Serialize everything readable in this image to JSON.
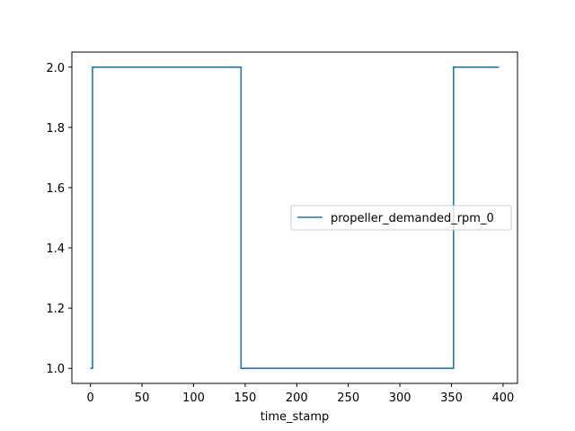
{
  "chart_data": {
    "type": "line",
    "title": "",
    "xlabel": "time_stamp",
    "ylabel": "",
    "xlim": [
      -18,
      414
    ],
    "ylim": [
      0.95,
      2.05
    ],
    "xticks": [
      0,
      50,
      100,
      150,
      200,
      250,
      300,
      350,
      400
    ],
    "yticks": [
      1.0,
      1.2,
      1.4,
      1.6,
      1.8,
      2.0
    ],
    "xtick_labels": [
      "0",
      "50",
      "100",
      "150",
      "200",
      "250",
      "300",
      "350",
      "400"
    ],
    "ytick_labels": [
      "1.0",
      "1.2",
      "1.4",
      "1.6",
      "1.8",
      "2.0"
    ],
    "grid": false,
    "legend_position": "center-right",
    "series": [
      {
        "name": "propeller_demanded_rpm_0",
        "color": "#1f77b4",
        "x": [
          0,
          2,
          2,
          146,
          146,
          352,
          352,
          396
        ],
        "y": [
          1.0,
          1.0,
          2.0,
          2.0,
          1.0,
          1.0,
          2.0,
          2.0
        ]
      }
    ]
  }
}
